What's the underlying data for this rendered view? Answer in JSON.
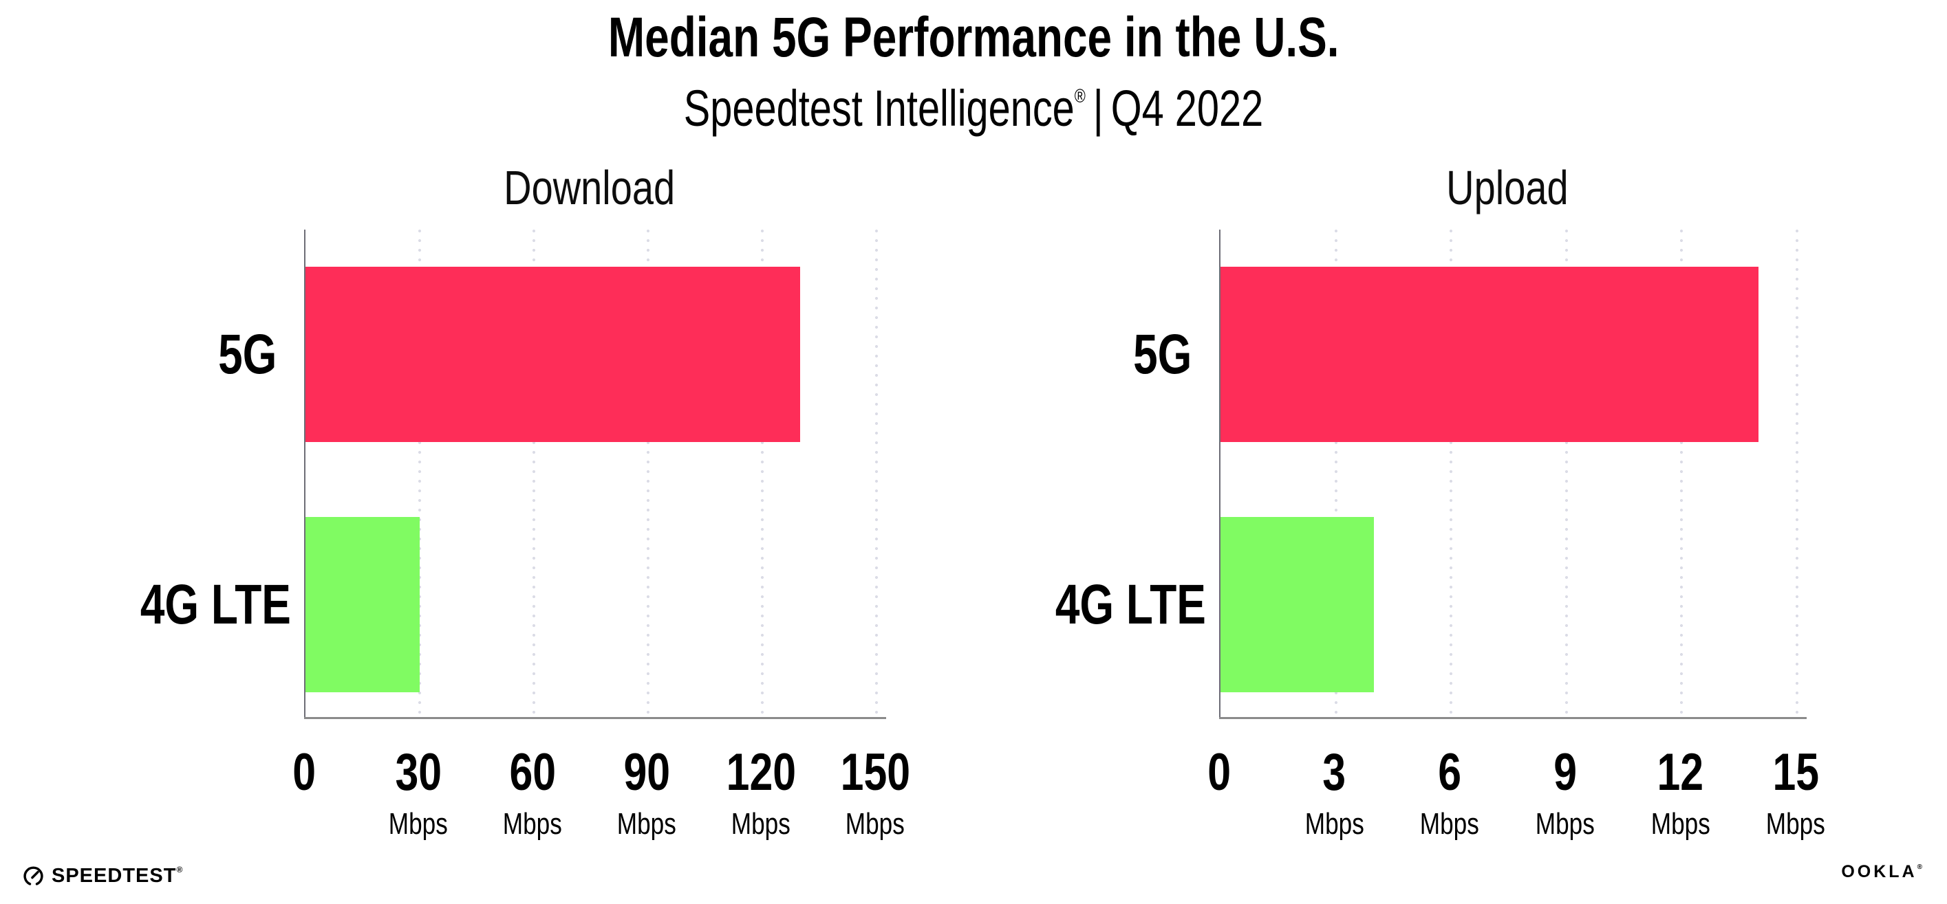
{
  "header": {
    "title": "Median 5G Performance in the U.S.",
    "subtitle_product": "Speedtest Intelligence",
    "subtitle_reg": "®",
    "subtitle_separator": "|",
    "subtitle_period": "Q4 2022"
  },
  "colors": {
    "bar_5g": "#fe2d58",
    "bar_4g_lte": "#80fb62",
    "x_axis_line": "#8a8a8a",
    "y_axis_line": "#6d6d76",
    "gridline_dots": "#dbdce6",
    "text": "#000000"
  },
  "chart_data": [
    {
      "type": "bar",
      "orientation": "horizontal",
      "title": "Download",
      "categories": [
        "5G",
        "4G LTE"
      ],
      "values": [
        130,
        30
      ],
      "unit": "Mbps",
      "xlim": [
        0,
        150
      ],
      "xticks": [
        0,
        30,
        60,
        90,
        120,
        150
      ],
      "tick_unit_label": "Mbps",
      "bar_colors": [
        "#fe2d58",
        "#80fb62"
      ],
      "grid": "dotted-vertical",
      "legend": "none"
    },
    {
      "type": "bar",
      "orientation": "horizontal",
      "title": "Upload",
      "categories": [
        "5G",
        "4G LTE"
      ],
      "values": [
        14,
        4
      ],
      "unit": "Mbps",
      "xlim": [
        0,
        15
      ],
      "xticks": [
        0,
        3,
        6,
        9,
        12,
        15
      ],
      "tick_unit_label": "Mbps",
      "bar_colors": [
        "#fe2d58",
        "#80fb62"
      ],
      "grid": "dotted-vertical",
      "legend": "none"
    }
  ],
  "footer": {
    "speedtest_label": "SPEEDTEST",
    "speedtest_reg": "®",
    "speedtest_icon": "speedtest-gauge-icon",
    "ookla_label": "OOKLA",
    "ookla_reg": "®"
  }
}
